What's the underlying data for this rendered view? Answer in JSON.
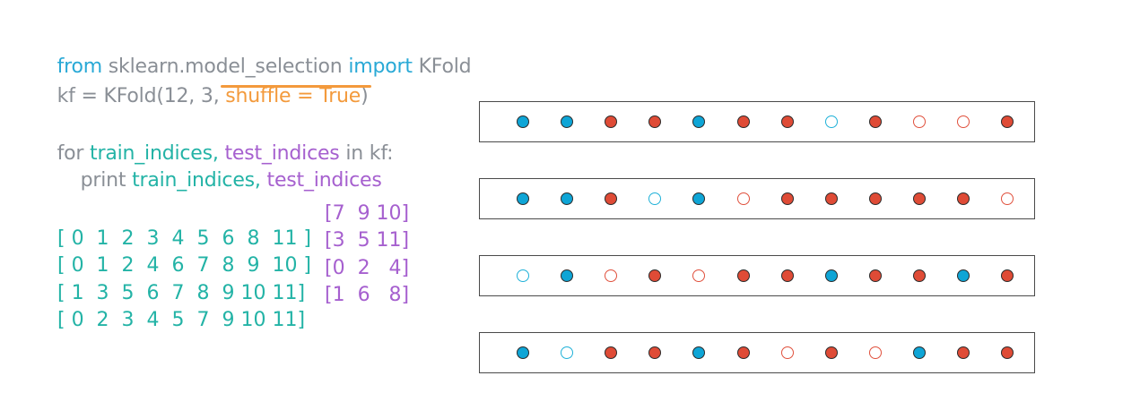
{
  "code": {
    "line1": {
      "kw_from": "from",
      "module": "sklearn.model_selection",
      "kw_import": "import",
      "name": "KFold"
    },
    "line2": {
      "prefix": "kf = KFold(12, 3, ",
      "shuffle": "shuffle = True",
      "suffix": ")"
    },
    "line3": {
      "kw_for": "for",
      "train": "train_indices,",
      "test": "test_indices",
      "rest": "in kf:"
    },
    "line4": {
      "kw_print": "print",
      "train": "train_indices,",
      "test": "test_indices"
    }
  },
  "output_rows": [
    {
      "train": "[ 0  1  2  3  4  5  6  8  11 ]",
      "test": "[7  9 10]"
    },
    {
      "train": "[ 0  1  2  4  6  7  8  9  10 ]",
      "test": "[3  5 11]"
    },
    {
      "train": "[ 1  3  5  6  7  8  9 10 11]",
      "test": "[0  2   4]"
    },
    {
      "train": "[ 0  2  3  4  5  7  9 10 11]",
      "test": "[1  6   8]"
    }
  ],
  "colors": {
    "blue_fill": "#0ea5d6",
    "red_fill": "#df4b36",
    "dot_stroke": "#2b2b2b",
    "blue_hollow": "#1fb1d8",
    "red_hollow": "#e0503c"
  },
  "folds": [
    [
      "blue",
      "blue",
      "red",
      "red",
      "blue",
      "red",
      "red",
      "blue-hollow",
      "red",
      "red-hollow",
      "red-hollow",
      "red"
    ],
    [
      "blue",
      "blue",
      "red",
      "blue-hollow",
      "blue",
      "red-hollow",
      "red",
      "red",
      "red",
      "red",
      "red",
      "red-hollow"
    ],
    [
      "blue-hollow",
      "blue",
      "red-hollow",
      "red",
      "red-hollow",
      "red",
      "red",
      "blue",
      "red",
      "red",
      "blue",
      "red"
    ],
    [
      "blue",
      "blue-hollow",
      "red",
      "red",
      "blue",
      "red",
      "red-hollow",
      "red",
      "red-hollow",
      "blue",
      "red",
      "red"
    ]
  ]
}
